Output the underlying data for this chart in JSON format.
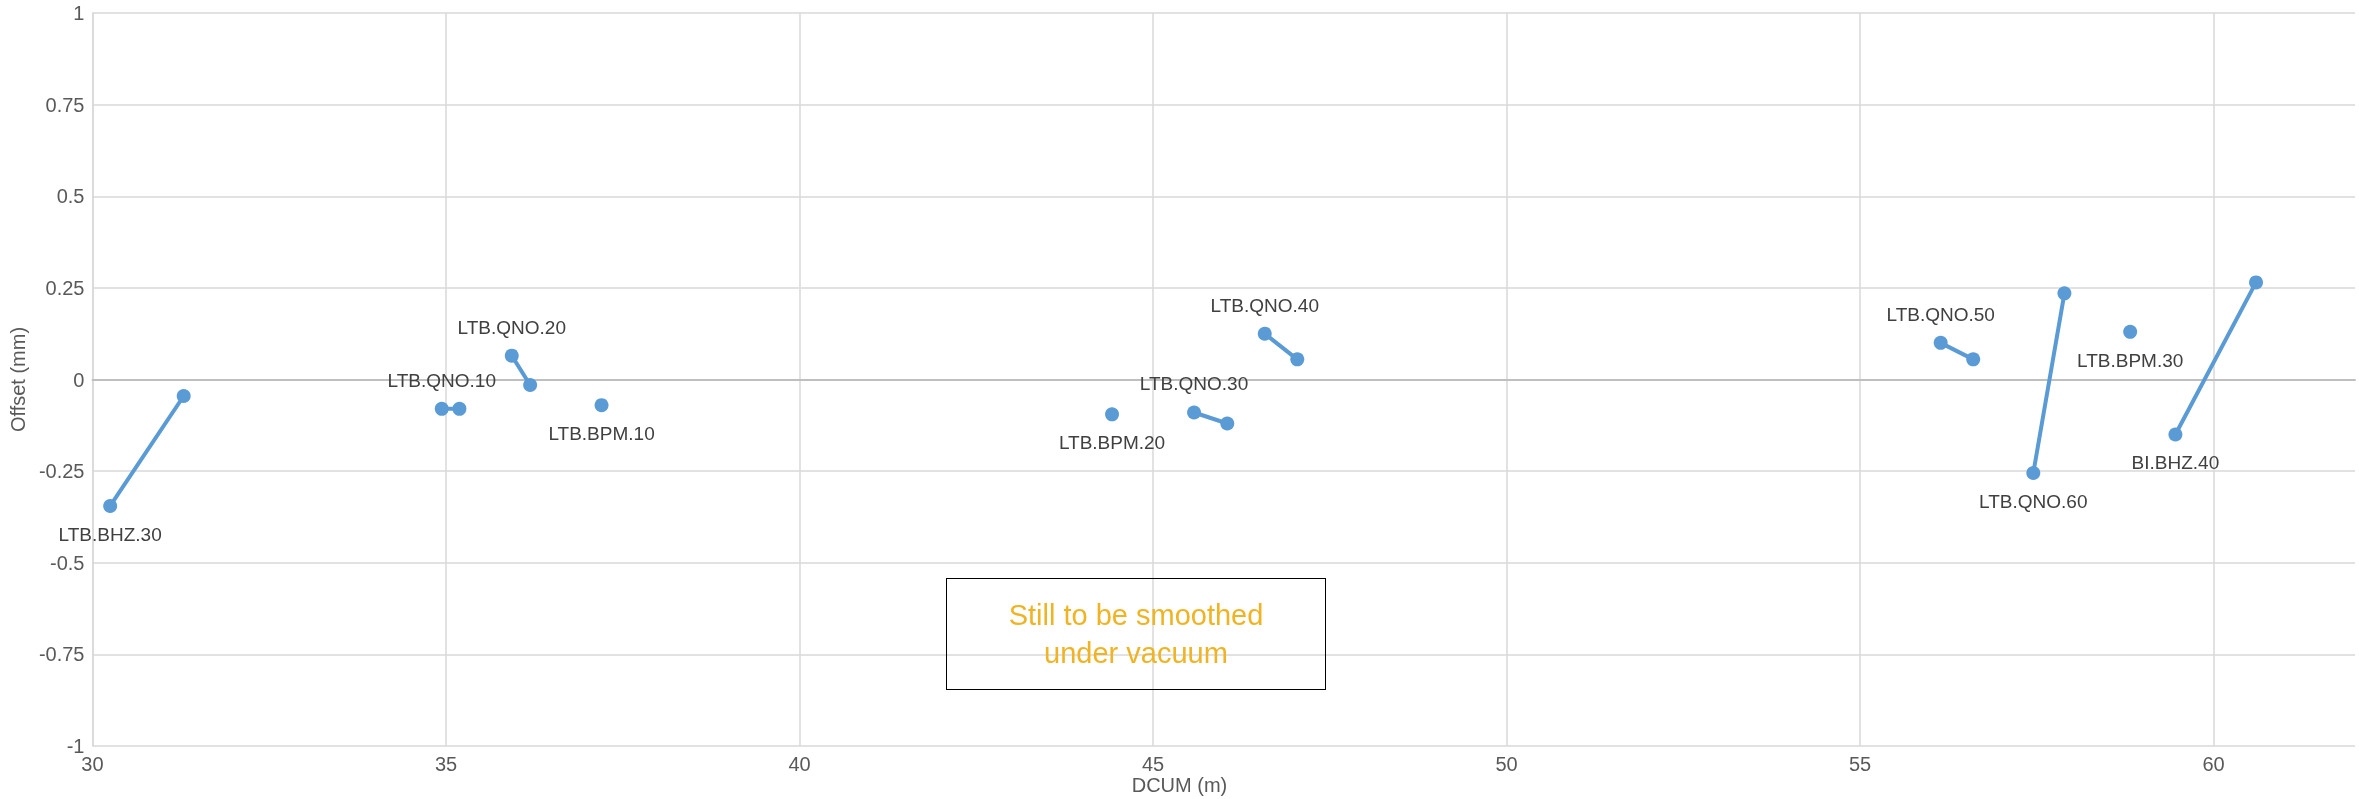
{
  "chart_data": {
    "type": "line",
    "xlabel": "DCUM (m)",
    "ylabel": "Offset (mm)",
    "xlim": [
      30,
      62
    ],
    "xticks": [
      30,
      35,
      40,
      45,
      50,
      55,
      60
    ],
    "ylim": [
      -1,
      1
    ],
    "yticks": [
      -1,
      -0.75,
      -0.5,
      -0.25,
      0,
      0.25,
      0.5,
      0.75,
      1
    ],
    "grid": true,
    "legend": false,
    "marker": "circle",
    "line_style": "solid",
    "annotations": [
      "Still to be smoothed under vacuum"
    ],
    "series": [
      {
        "name": "LTB.BHZ.30",
        "color": "#5b9bd5",
        "x": [
          30.25,
          31.29
        ],
        "values": [
          -0.345,
          -0.045
        ]
      },
      {
        "name": "LTB.QNO.10",
        "color": "#5b9bd5",
        "x": [
          34.94,
          35.19
        ],
        "values": [
          -0.08,
          -0.08
        ]
      },
      {
        "name": "LTB.QNO.20",
        "color": "#5b9bd5",
        "x": [
          35.93,
          36.19
        ],
        "values": [
          0.065,
          -0.015
        ]
      },
      {
        "name": "LTB.BPM.10",
        "color": "#5b9bd5",
        "x": [
          37.2
        ],
        "values": [
          -0.07
        ]
      },
      {
        "name": "LTB.BPM.20",
        "color": "#5b9bd5",
        "x": [
          44.42
        ],
        "values": [
          -0.095
        ]
      },
      {
        "name": "LTB.QNO.30",
        "color": "#5b9bd5",
        "x": [
          45.58,
          46.05
        ],
        "values": [
          -0.09,
          -0.12
        ]
      },
      {
        "name": "LTB.QNO.40",
        "color": "#5b9bd5",
        "x": [
          46.58,
          47.04
        ],
        "values": [
          0.125,
          0.055
        ]
      },
      {
        "name": "LTB.QNO.50",
        "color": "#5b9bd5",
        "x": [
          56.14,
          56.6
        ],
        "values": [
          0.1,
          0.055
        ]
      },
      {
        "name": "LTB.QNO.60",
        "color": "#5b9bd5",
        "x": [
          57.45,
          57.89
        ],
        "values": [
          -0.255,
          0.235
        ]
      },
      {
        "name": "LTB.BPM.30",
        "color": "#5b9bd5",
        "x": [
          58.82
        ],
        "values": [
          0.13
        ]
      },
      {
        "name": "BI.BHZ.40",
        "color": "#5b9bd5",
        "x": [
          59.46,
          60.6
        ],
        "values": [
          -0.15,
          0.265
        ]
      }
    ]
  }
}
